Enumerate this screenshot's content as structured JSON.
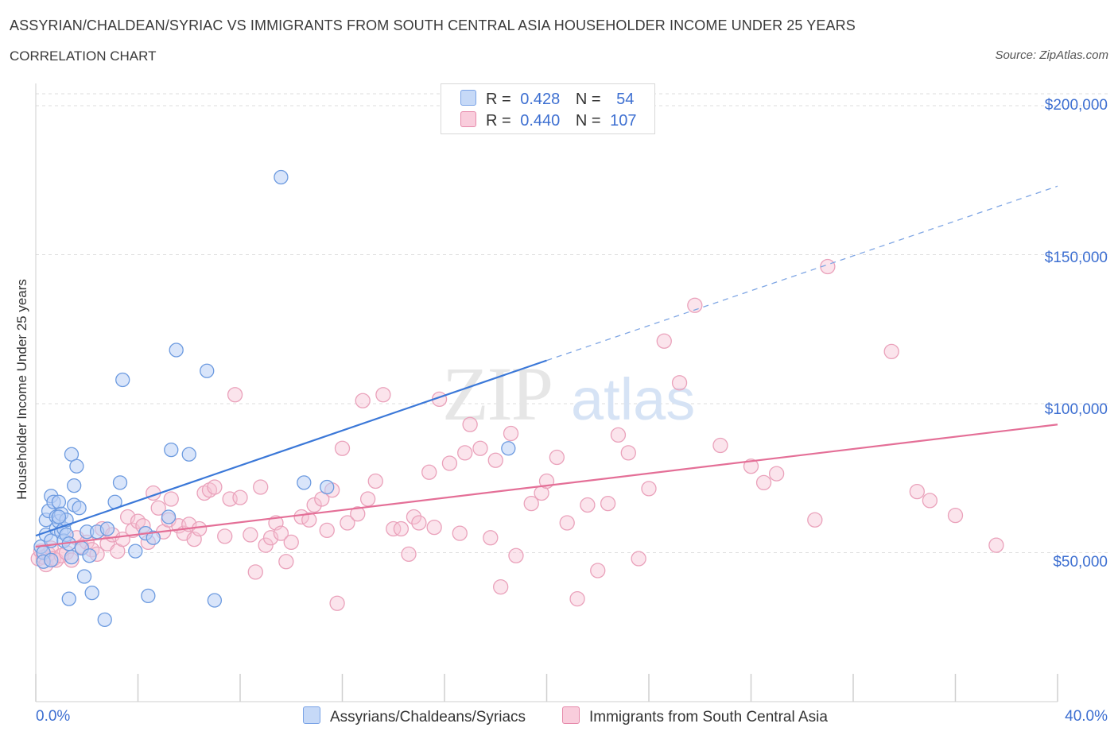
{
  "header": {
    "title": "ASSYRIAN/CHALDEAN/SYRIAC VS IMMIGRANTS FROM SOUTH CENTRAL ASIA HOUSEHOLDER INCOME UNDER 25 YEARS",
    "subtitle": "CORRELATION CHART",
    "source": "Source: ZipAtlas.com"
  },
  "legend": {
    "row1": {
      "r_label": "R =",
      "r_value": "0.428",
      "n_label": "N =",
      "n_value": "54"
    },
    "row2": {
      "r_label": "R =",
      "r_value": "0.440",
      "n_label": "N =",
      "n_value": "107"
    }
  },
  "watermark": {
    "zip": "ZIP",
    "atlas": "atlas"
  },
  "colors": {
    "blue": "#3b78d8",
    "blue_fill": "#b9d0f5",
    "pink": "#e46f97",
    "pink_fill": "#f7c3d4",
    "axis_text": "#3d6fd1",
    "grid": "#dcdcdc"
  },
  "chart_data": {
    "type": "scatter",
    "title": "ASSYRIAN/CHALDEAN/SYRIAC VS IMMIGRANTS FROM SOUTH CENTRAL ASIA HOUSEHOLDER INCOME UNDER 25 YEARS",
    "xlabel": "",
    "ylabel": "Householder Income Under 25 years",
    "xlim": [
      0,
      40
    ],
    "ylim": [
      0,
      200000
    ],
    "x_tick_labels": [
      "0.0%",
      "40.0%"
    ],
    "y_ticks": [
      50000,
      100000,
      150000,
      200000
    ],
    "y_tick_labels": [
      "$50,000",
      "$100,000",
      "$150,000",
      "$200,000"
    ],
    "grid": true,
    "legend_placement": "bottom",
    "series": [
      {
        "name": "Assyrians/Chaldeans/Syriacs",
        "color": "#3b78d8",
        "r": 0.428,
        "n": 54,
        "trend": {
          "x0": 0,
          "y0": 55700,
          "x1": 20,
          "y1": 114500,
          "dash_to_x": 40,
          "dash_to_y": 173000
        },
        "points": [
          [
            0.2,
            52000
          ],
          [
            0.3,
            50000
          ],
          [
            0.3,
            47000
          ],
          [
            0.4,
            61000
          ],
          [
            0.4,
            56000
          ],
          [
            0.5,
            64000
          ],
          [
            0.6,
            54000
          ],
          [
            0.6,
            47500
          ],
          [
            0.6,
            69000
          ],
          [
            0.7,
            67000
          ],
          [
            0.8,
            58000
          ],
          [
            0.8,
            62000
          ],
          [
            0.9,
            67000
          ],
          [
            0.9,
            60500
          ],
          [
            1.0,
            57000
          ],
          [
            1.0,
            63000
          ],
          [
            1.1,
            58000
          ],
          [
            1.1,
            54000
          ],
          [
            1.2,
            61000
          ],
          [
            1.2,
            56000
          ],
          [
            1.3,
            34500
          ],
          [
            1.3,
            53000
          ],
          [
            1.4,
            83000
          ],
          [
            1.4,
            48500
          ],
          [
            1.5,
            72500
          ],
          [
            1.5,
            66000
          ],
          [
            1.6,
            79000
          ],
          [
            1.7,
            65000
          ],
          [
            1.8,
            51500
          ],
          [
            1.9,
            42000
          ],
          [
            2.0,
            57000
          ],
          [
            2.1,
            49000
          ],
          [
            2.2,
            36500
          ],
          [
            2.4,
            57000
          ],
          [
            2.7,
            27500
          ],
          [
            2.8,
            58000
          ],
          [
            3.1,
            67000
          ],
          [
            3.3,
            73500
          ],
          [
            3.4,
            108000
          ],
          [
            3.9,
            50500
          ],
          [
            4.3,
            56500
          ],
          [
            4.4,
            35500
          ],
          [
            4.6,
            55000
          ],
          [
            5.2,
            62000
          ],
          [
            5.3,
            84500
          ],
          [
            5.5,
            118000
          ],
          [
            6.0,
            83000
          ],
          [
            6.7,
            111000
          ],
          [
            7.0,
            34000
          ],
          [
            9.6,
            176000
          ],
          [
            10.5,
            73500
          ],
          [
            11.4,
            72000
          ],
          [
            18.5,
            85000
          ],
          [
            0.9,
            62000
          ]
        ]
      },
      {
        "name": "Immigrants from South Central Asia",
        "color": "#e46f97",
        "r": 0.44,
        "n": 107,
        "trend": {
          "x0": 0,
          "y0": 52000,
          "x1": 40,
          "y1": 93000
        },
        "points": [
          [
            0.1,
            48000
          ],
          [
            0.2,
            50500
          ],
          [
            0.3,
            48500
          ],
          [
            0.4,
            46000
          ],
          [
            0.5,
            49500
          ],
          [
            0.6,
            51500
          ],
          [
            0.7,
            48000
          ],
          [
            0.8,
            47500
          ],
          [
            1.0,
            49000
          ],
          [
            1.2,
            50000
          ],
          [
            1.4,
            47500
          ],
          [
            1.6,
            55000
          ],
          [
            1.8,
            52000
          ],
          [
            2.0,
            53500
          ],
          [
            2.2,
            51000
          ],
          [
            2.4,
            49500
          ],
          [
            2.6,
            58000
          ],
          [
            2.8,
            53000
          ],
          [
            3.0,
            56000
          ],
          [
            3.2,
            50500
          ],
          [
            3.4,
            54500
          ],
          [
            3.6,
            62000
          ],
          [
            3.8,
            57500
          ],
          [
            4.0,
            60500
          ],
          [
            4.2,
            59000
          ],
          [
            4.4,
            53500
          ],
          [
            4.6,
            70000
          ],
          [
            4.8,
            65000
          ],
          [
            5.0,
            57000
          ],
          [
            5.2,
            61000
          ],
          [
            5.3,
            68000
          ],
          [
            5.6,
            59000
          ],
          [
            5.8,
            56500
          ],
          [
            6.0,
            59500
          ],
          [
            6.2,
            54500
          ],
          [
            6.4,
            58000
          ],
          [
            6.6,
            70000
          ],
          [
            6.8,
            71000
          ],
          [
            7.0,
            72000
          ],
          [
            7.4,
            55500
          ],
          [
            7.6,
            68000
          ],
          [
            7.8,
            103000
          ],
          [
            8.0,
            68500
          ],
          [
            8.4,
            56000
          ],
          [
            8.6,
            43500
          ],
          [
            8.8,
            72000
          ],
          [
            9.0,
            52500
          ],
          [
            9.2,
            55000
          ],
          [
            9.4,
            60000
          ],
          [
            9.6,
            56500
          ],
          [
            9.8,
            47000
          ],
          [
            10.0,
            53500
          ],
          [
            10.4,
            62000
          ],
          [
            10.7,
            61000
          ],
          [
            10.9,
            66000
          ],
          [
            11.2,
            68000
          ],
          [
            11.4,
            57500
          ],
          [
            11.6,
            71000
          ],
          [
            11.8,
            33000
          ],
          [
            12.0,
            85000
          ],
          [
            12.2,
            60000
          ],
          [
            12.6,
            63000
          ],
          [
            12.8,
            101000
          ],
          [
            13.0,
            68000
          ],
          [
            13.3,
            74000
          ],
          [
            13.6,
            103000
          ],
          [
            14.0,
            58000
          ],
          [
            14.3,
            58000
          ],
          [
            14.6,
            49500
          ],
          [
            14.8,
            62000
          ],
          [
            15.0,
            60000
          ],
          [
            15.4,
            77000
          ],
          [
            15.6,
            58500
          ],
          [
            15.8,
            101500
          ],
          [
            16.2,
            80000
          ],
          [
            16.6,
            56500
          ],
          [
            16.8,
            83500
          ],
          [
            17.0,
            93000
          ],
          [
            17.4,
            85000
          ],
          [
            17.8,
            55000
          ],
          [
            18.0,
            81000
          ],
          [
            18.2,
            38500
          ],
          [
            18.6,
            90000
          ],
          [
            18.8,
            49000
          ],
          [
            19.4,
            66500
          ],
          [
            19.8,
            70000
          ],
          [
            20.0,
            74000
          ],
          [
            20.4,
            82000
          ],
          [
            20.8,
            60000
          ],
          [
            21.2,
            34500
          ],
          [
            21.6,
            66000
          ],
          [
            22.0,
            44000
          ],
          [
            22.4,
            66500
          ],
          [
            22.8,
            89500
          ],
          [
            23.2,
            83500
          ],
          [
            23.6,
            48000
          ],
          [
            24.0,
            71500
          ],
          [
            24.6,
            121000
          ],
          [
            25.2,
            107000
          ],
          [
            25.8,
            133000
          ],
          [
            26.8,
            86000
          ],
          [
            28.0,
            79000
          ],
          [
            28.5,
            73500
          ],
          [
            29.0,
            76500
          ],
          [
            30.5,
            61000
          ],
          [
            31.0,
            146000
          ],
          [
            33.5,
            117500
          ]
        ]
      }
    ],
    "extra_points_pink": [
      [
        34.5,
        70500
      ],
      [
        35.0,
        67500
      ],
      [
        36.0,
        62500
      ],
      [
        37.6,
        52500
      ]
    ]
  },
  "bottom_legend": {
    "item1": "Assyrians/Chaldeans/Syriacs",
    "item2": "Immigrants from South Central Asia"
  },
  "x_axis": {
    "left_label": "0.0%",
    "right_label": "40.0%"
  },
  "y_axis": {
    "label": "Householder Income Under 25 years",
    "ticks": [
      "$200,000",
      "$150,000",
      "$100,000",
      "$50,000"
    ]
  }
}
